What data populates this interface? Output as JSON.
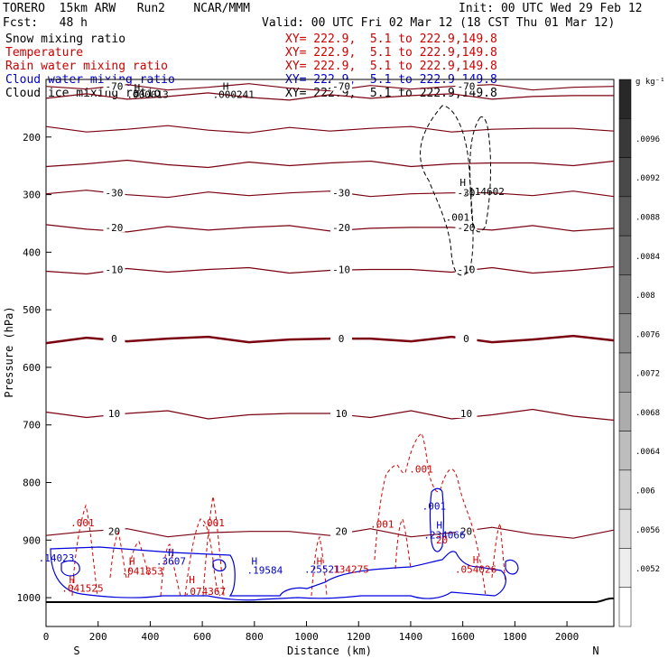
{
  "header": {
    "model": "TORERO  15km ARW   Run2    NCAR/MMM",
    "init": "Init: 00 UTC Wed 29 Feb 12",
    "fcst": "Fcst:   48 h",
    "valid": "Valid: 00 UTC Fri 02 Mar 12 (18 CST Thu 01 Mar 12)"
  },
  "legend": [
    {
      "name": "Snow mixing ratio",
      "xy": "XY= 222.9,  5.1 to 222.9,149.8",
      "color": "#000000"
    },
    {
      "name": "Temperature",
      "xy": "XY= 222.9,  5.1 to 222.9,149.8",
      "color": "#cc0000"
    },
    {
      "name": "Rain water mixing ratio",
      "xy": "XY= 222.9,  5.1 to 222.9,149.8",
      "color": "#cc0000"
    },
    {
      "name": "Cloud water mixing ratio",
      "xy": "XY= 222.9,  5.1 to 222.9,149.8",
      "color": "#0000cc"
    },
    {
      "name": "Cloud ice mixing ratio",
      "xy": "XY= 222.9,  5.1 to 222.9,149.8",
      "color": "#000000"
    }
  ],
  "chart_data": {
    "type": "cross-section",
    "xlabel": "Distance (km)",
    "ylabel": "Pressure (hPa)",
    "xlim": [
      0,
      2180
    ],
    "ylim": [
      1050,
      100
    ],
    "x_ticks": [
      0,
      200,
      400,
      600,
      800,
      1000,
      1200,
      1400,
      1600,
      1800,
      2000
    ],
    "x_tick_labels": [
      "0",
      "200",
      "400",
      "600",
      "800",
      "1000",
      "1200",
      "1400",
      "1600",
      "1800",
      "2000"
    ],
    "y_ticks": [
      200,
      300,
      400,
      500,
      600,
      700,
      800,
      900,
      1000
    ],
    "y_tick_labels": [
      "200",
      "300",
      "400",
      "500",
      "600",
      "700",
      "800",
      "900",
      "1000"
    ],
    "direction_labels": {
      "start": "S",
      "end": "N"
    },
    "colorbar": {
      "unit": "g kg⁻¹",
      "labels": [
        ".0096",
        ".0092",
        ".0088",
        ".0084",
        ".008",
        ".0076",
        ".0072",
        ".0068",
        ".0064",
        ".006",
        ".0056",
        ".0052"
      ]
    },
    "temperature_contours": [
      {
        "value": -70,
        "label": "-70",
        "pressure": 112
      },
      {
        "value": -60,
        "label": "",
        "pressure": 128
      },
      {
        "value": -50,
        "label": "",
        "pressure": 185
      },
      {
        "value": -40,
        "label": "",
        "pressure": 245
      },
      {
        "value": -30,
        "label": "-30",
        "pressure": 297
      },
      {
        "value": -20,
        "label": "-20",
        "pressure": 357
      },
      {
        "value": -10,
        "label": "-10",
        "pressure": 430
      },
      {
        "value": 0,
        "label": "0",
        "pressure": 550
      },
      {
        "value": 10,
        "label": "10",
        "pressure": 680
      },
      {
        "value": 20,
        "label": "20",
        "pressure": 885
      }
    ],
    "annotations": [
      {
        "text": "H",
        "x": 350,
        "p": 120,
        "color": "#000000"
      },
      {
        "text": ".000013",
        "x": 390,
        "p": 132,
        "color": "#000000"
      },
      {
        "text": "H",
        "x": 690,
        "p": 118,
        "color": "#000000"
      },
      {
        "text": ".000241",
        "x": 720,
        "p": 132,
        "color": "#000000"
      },
      {
        "text": "H",
        "x": 1600,
        "p": 285,
        "color": "#000000"
      },
      {
        "text": ".114602",
        "x": 1680,
        "p": 301,
        "color": "#000000"
      },
      {
        "text": ".001",
        "x": 1580,
        "p": 345,
        "color": "#000000"
      },
      {
        "text": ".001",
        "x": 140,
        "p": 876,
        "color": "#cc0000"
      },
      {
        "text": ".001",
        "x": 640,
        "p": 876,
        "color": "#cc0000"
      },
      {
        "text": ".001",
        "x": 1290,
        "p": 878,
        "color": "#cc0000"
      },
      {
        "text": ".001",
        "x": 1440,
        "p": 783,
        "color": "#cc0000"
      },
      {
        "text": ".001",
        "x": 1490,
        "p": 847,
        "color": "#0000cc"
      },
      {
        "text": "H",
        "x": 1510,
        "p": 880,
        "color": "#0000cc"
      },
      {
        "text": ".234066",
        "x": 1530,
        "p": 897,
        "color": "#0000cc"
      },
      {
        "text": "20",
        "x": 1520,
        "p": 906,
        "color": "#cc0000"
      },
      {
        "text": "H",
        "x": 480,
        "p": 928,
        "color": "#0000cc"
      },
      {
        "text": ".3607",
        "x": 480,
        "p": 943,
        "color": "#0000cc"
      },
      {
        "text": "H",
        "x": 800,
        "p": 943,
        "color": "#0000cc"
      },
      {
        "text": ".19584",
        "x": 840,
        "p": 958,
        "color": "#0000cc"
      },
      {
        "text": "H",
        "x": 1050,
        "p": 943,
        "color": "#cc0000"
      },
      {
        "text": ".25521",
        "x": 1060,
        "p": 957,
        "color": "#0000cc"
      },
      {
        "text": ".134275",
        "x": 1160,
        "p": 957,
        "color": "#cc0000"
      },
      {
        "text": "H",
        "x": 1650,
        "p": 940,
        "color": "#cc0000"
      },
      {
        "text": ".054026",
        "x": 1650,
        "p": 957,
        "color": "#cc0000"
      },
      {
        "text": "H",
        "x": 100,
        "p": 975,
        "color": "#cc0000"
      },
      {
        "text": ".041525",
        "x": 140,
        "p": 990,
        "color": "#cc0000"
      },
      {
        "text": "H",
        "x": 330,
        "p": 943,
        "color": "#cc0000"
      },
      {
        "text": ".041853",
        "x": 370,
        "p": 960,
        "color": "#cc0000"
      },
      {
        "text": "H",
        "x": 560,
        "p": 975,
        "color": "#cc0000"
      },
      {
        "text": ".074367",
        "x": 610,
        "p": 995,
        "color": "#cc0000"
      },
      {
        "text": ".14023",
        "x": 40,
        "p": 937,
        "color": "#0000cc"
      }
    ]
  }
}
